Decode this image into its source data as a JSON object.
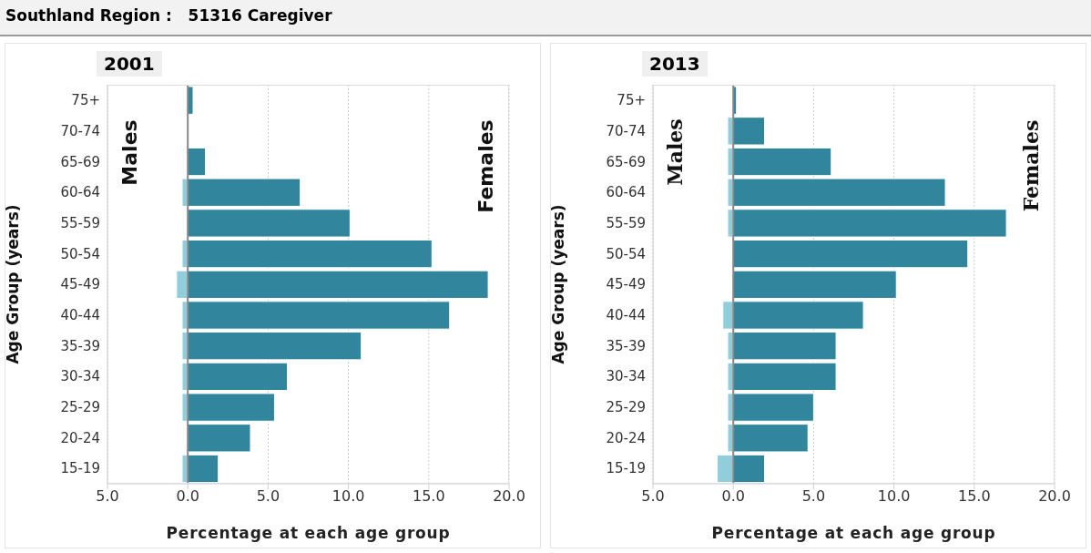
{
  "chart_data": [
    {
      "type": "bar",
      "title": "Southland Region :   51316 Caregiver",
      "subtitle": "2001",
      "orientation": "horizontal",
      "stacked": true,
      "xlabel": "Percentage at each age group",
      "ylabel": "Age Group (years)",
      "categories": [
        "75+",
        "70-74",
        "65-69",
        "60-64",
        "55-59",
        "50-54",
        "45-49",
        "40-44",
        "35-39",
        "30-34",
        "25-29",
        "20-24",
        "15-19"
      ],
      "series": [
        {
          "name": "Males",
          "color": "#92cddc",
          "values": [
            0,
            0,
            0,
            -0.35,
            0,
            -0.35,
            -0.7,
            -0.35,
            -0.35,
            -0.35,
            -0.35,
            0,
            -0.35
          ]
        },
        {
          "name": "Females",
          "color": "#31859c",
          "values": [
            0.33,
            0,
            1.1,
            7.0,
            10.1,
            15.2,
            18.7,
            16.3,
            10.8,
            6.2,
            5.4,
            3.9,
            1.9
          ]
        }
      ],
      "xlim": [
        -5,
        20
      ],
      "xticks": [
        {
          "value": -5,
          "label": "5.0"
        },
        {
          "value": 0,
          "label": "0.0"
        },
        {
          "value": 5,
          "label": "5.0"
        },
        {
          "value": 10,
          "label": "10.0"
        },
        {
          "value": 15,
          "label": "15.0"
        },
        {
          "value": 20,
          "label": "20.0"
        }
      ],
      "grid": "x",
      "ref_lines": [
        {
          "axis": "x",
          "value": 0,
          "color": "#888888"
        }
      ]
    },
    {
      "type": "bar",
      "subtitle": "2013",
      "orientation": "horizontal",
      "stacked": true,
      "xlabel": "Percentage at each age group",
      "ylabel": "Age Group (years)",
      "categories": [
        "75+",
        "70-74",
        "65-69",
        "60-64",
        "55-59",
        "50-54",
        "45-49",
        "40-44",
        "35-39",
        "30-34",
        "25-29",
        "20-24",
        "15-19"
      ],
      "series": [
        {
          "name": "Males",
          "color": "#92cddc",
          "values": [
            0,
            -0.35,
            -0.35,
            -0.35,
            -0.35,
            0,
            0,
            -0.65,
            -0.35,
            -0.35,
            -0.35,
            -0.35,
            -1.0
          ]
        },
        {
          "name": "Females",
          "color": "#31859c",
          "values": [
            0.2,
            1.95,
            6.1,
            13.2,
            17.0,
            14.6,
            10.15,
            8.1,
            6.4,
            6.4,
            5.0,
            4.65,
            1.95
          ]
        }
      ],
      "xlim": [
        -5,
        20
      ],
      "xticks": [
        {
          "value": -5,
          "label": "5.0"
        },
        {
          "value": 0,
          "label": "0.0"
        },
        {
          "value": 5,
          "label": "5.0"
        },
        {
          "value": 10,
          "label": "10.0"
        },
        {
          "value": 15,
          "label": "15.0"
        },
        {
          "value": 20,
          "label": "20.0"
        }
      ],
      "grid": "x",
      "ref_lines": [
        {
          "axis": "x",
          "value": 0,
          "color": "#888888"
        }
      ]
    }
  ]
}
